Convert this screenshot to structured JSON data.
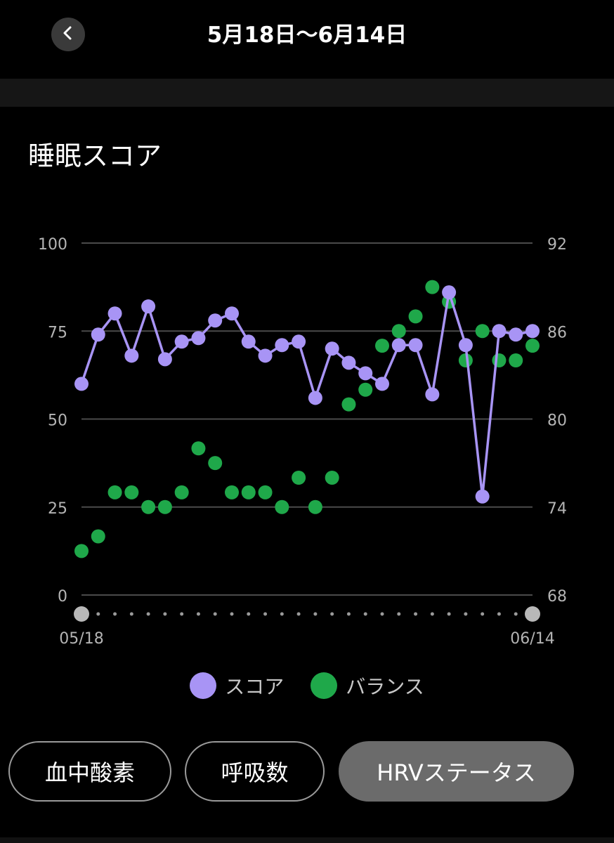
{
  "header": {
    "title": "5月18日〜6月14日",
    "back_icon": "chevron-left-icon"
  },
  "section": {
    "title": "睡眠スコア"
  },
  "chart_data": {
    "type": "line",
    "title": "",
    "x_start_label": "05/18",
    "x_end_label": "06/14",
    "n_days": 28,
    "ylim_left": [
      0,
      100
    ],
    "ylim_right": [
      68,
      92
    ],
    "yticks_left": [
      "0",
      "25",
      "50",
      "75",
      "100"
    ],
    "yticks_right": [
      "68",
      "74",
      "80",
      "86",
      "92"
    ],
    "grid": true,
    "legend_position": "bottom",
    "series": [
      {
        "name": "スコア",
        "axis": "left",
        "style": "line-with-markers",
        "color": "#a894f5",
        "values": [
          60,
          74,
          80,
          68,
          82,
          67,
          72,
          73,
          78,
          80,
          72,
          68,
          71,
          72,
          56,
          70,
          66,
          63,
          60,
          71,
          71,
          57,
          86,
          71,
          28,
          75,
          74,
          75
        ]
      },
      {
        "name": "バランス",
        "axis": "right",
        "style": "markers",
        "color": "#1fa84a",
        "points": [
          {
            "day": 0,
            "value": 71
          },
          {
            "day": 1,
            "value": 72
          },
          {
            "day": 2,
            "value": 75
          },
          {
            "day": 3,
            "value": 75
          },
          {
            "day": 4,
            "value": 74
          },
          {
            "day": 5,
            "value": 74
          },
          {
            "day": 6,
            "value": 75
          },
          {
            "day": 7,
            "value": 78
          },
          {
            "day": 8,
            "value": 77
          },
          {
            "day": 9,
            "value": 75
          },
          {
            "day": 10,
            "value": 75
          },
          {
            "day": 11,
            "value": 75
          },
          {
            "day": 12,
            "value": 74
          },
          {
            "day": 13,
            "value": 76
          },
          {
            "day": 14,
            "value": 74
          },
          {
            "day": 15,
            "value": 76
          },
          {
            "day": 16,
            "value": 81
          },
          {
            "day": 17,
            "value": 82
          },
          {
            "day": 18,
            "value": 85
          },
          {
            "day": 19,
            "value": 86
          },
          {
            "day": 20,
            "value": 87
          },
          {
            "day": 21,
            "value": 89
          },
          {
            "day": 22,
            "value": 88
          },
          {
            "day": 23,
            "value": 84
          },
          {
            "day": 24,
            "value": 86
          },
          {
            "day": 25,
            "value": 84
          },
          {
            "day": 26,
            "value": 84
          },
          {
            "day": 27,
            "value": 85
          }
        ]
      }
    ]
  },
  "legend": {
    "items": [
      {
        "label": "スコア",
        "color": "#a894f5"
      },
      {
        "label": "バランス",
        "color": "#1fa84a"
      }
    ]
  },
  "buttons": [
    {
      "label": "血中酸素",
      "active": false
    },
    {
      "label": "呼吸数",
      "active": false
    },
    {
      "label": "HRVステータス",
      "active": true
    }
  ]
}
